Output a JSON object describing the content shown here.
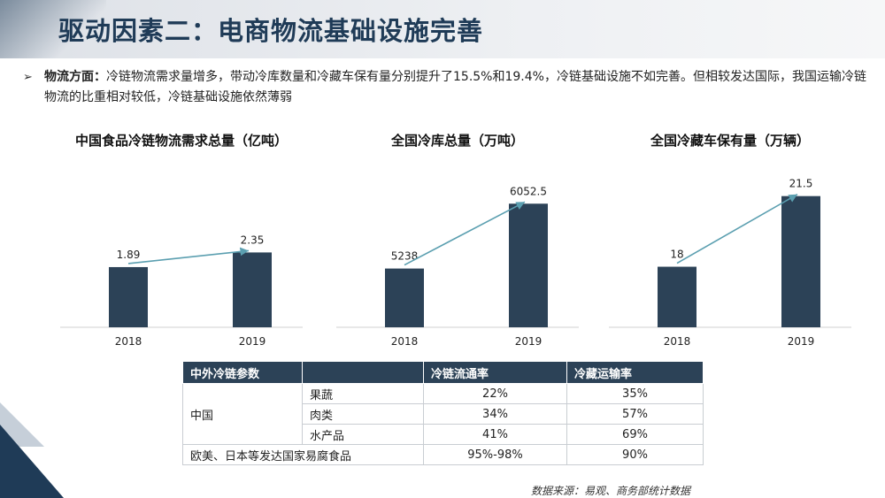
{
  "title": "驱动因素二：电商物流基础设施完善",
  "bullet": {
    "lead": "物流方面：",
    "text": "冷链物流需求量增多，带动冷库数量和冷藏车保有量分别提升了15.5%和19.4%，冷链基础设施不如完善。但相较发达国际，我国运输冷链物流的比重相对较低，冷链基础设施依然薄弱"
  },
  "colors": {
    "bar": "#2c4257",
    "arrow": "#5b9fb0",
    "header": "#2c4257"
  },
  "chart_data": [
    {
      "type": "bar",
      "title": "中国食品冷链物流需求总量（亿吨）",
      "categories": [
        "2018",
        "2019"
      ],
      "values": [
        1.89,
        2.35
      ],
      "value_labels": [
        "1.89",
        "2.35"
      ],
      "ylim": [
        0,
        4.5
      ]
    },
    {
      "type": "bar",
      "title": "全国冷库总量（万吨）",
      "categories": [
        "2018",
        "2019"
      ],
      "values": [
        5238,
        6052.5
      ],
      "value_labels": [
        "5238",
        "6052.5"
      ],
      "ylim": [
        4500,
        6300
      ]
    },
    {
      "type": "bar",
      "title": "全国冷藏车保有量（万辆）",
      "categories": [
        "2018",
        "2019"
      ],
      "values": [
        18,
        21.5
      ],
      "value_labels": [
        "18",
        "21.5"
      ],
      "ylim": [
        15,
        22.1
      ]
    }
  ],
  "table": {
    "headers": [
      "中外冷链参数",
      "",
      "冷链流通率",
      "冷藏运输率"
    ],
    "china_label": "中国",
    "china_rows": [
      {
        "item": "果蔬",
        "flow": "22%",
        "transport": "35%"
      },
      {
        "item": "肉类",
        "flow": "34%",
        "transport": "57%"
      },
      {
        "item": "水产品",
        "flow": "41%",
        "transport": "69%"
      }
    ],
    "foreign": {
      "label": "欧美、日本等发达国家易腐食品",
      "flow": "95%-98%",
      "transport": "90%"
    }
  },
  "source": "数据来源：易观、商务部统计数据"
}
